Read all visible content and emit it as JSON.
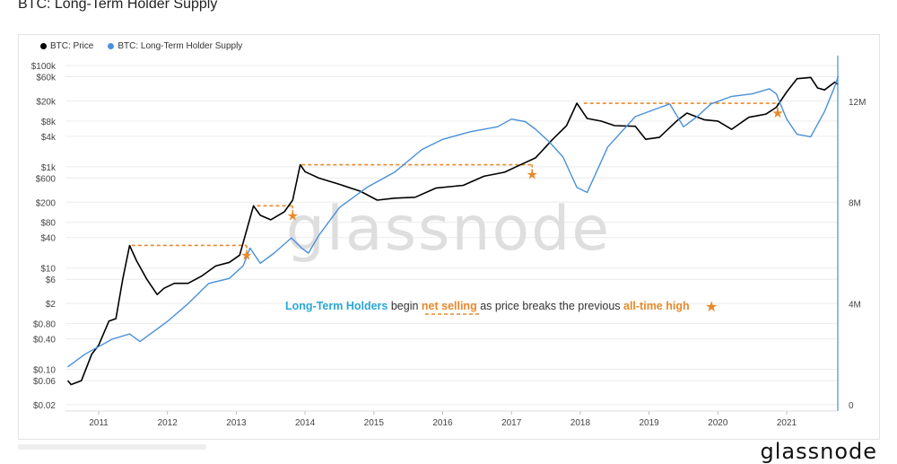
{
  "title": "BTC: Long-Term Holder Supply",
  "legend": [
    {
      "label": "BTC: Price",
      "color": "#000000"
    },
    {
      "label": "BTC: Long-Term Holder Supply",
      "color": "#4a90d9"
    }
  ],
  "watermark": "glassnode",
  "brand": "glassnode",
  "annotation": {
    "part1": "Long-Term Holders",
    "part2": " begin ",
    "part3": "net selling",
    "part4": " as price breaks the previous ",
    "part5": "all-time high",
    "star": "★"
  },
  "colors": {
    "price": "#000000",
    "lth": "#4a90d9",
    "accent": "#e8892b",
    "grid": "#ececec"
  },
  "chart_data": {
    "type": "line",
    "x_ticks": [
      "2011",
      "2012",
      "2013",
      "2014",
      "2015",
      "2016",
      "2017",
      "2018",
      "2019",
      "2020",
      "2021"
    ],
    "y_left_ticks": [
      "$100k",
      "$60k",
      "$20k",
      "$8k",
      "$4k",
      "$1k",
      "$600",
      "$200",
      "$80",
      "$40",
      "$10",
      "$6",
      "$2",
      "$0.80",
      "$0.40",
      "$0.10",
      "$0.06",
      "$0.02"
    ],
    "y_left_scale": "log",
    "y_right_ticks": [
      "12M",
      "8M",
      "4M",
      "0"
    ],
    "ylim_right": [
      0,
      14000000
    ],
    "series": [
      {
        "name": "BTC: Price",
        "axis": "left",
        "points": [
          [
            2010.55,
            0.06
          ],
          [
            2010.6,
            0.05
          ],
          [
            2010.75,
            0.06
          ],
          [
            2010.9,
            0.2
          ],
          [
            2011.0,
            0.3
          ],
          [
            2011.15,
            0.9
          ],
          [
            2011.25,
            1.0
          ],
          [
            2011.35,
            6
          ],
          [
            2011.45,
            28
          ],
          [
            2011.55,
            14
          ],
          [
            2011.7,
            6
          ],
          [
            2011.85,
            3
          ],
          [
            2011.95,
            4
          ],
          [
            2012.1,
            5
          ],
          [
            2012.3,
            5
          ],
          [
            2012.5,
            7
          ],
          [
            2012.7,
            11
          ],
          [
            2012.9,
            13
          ],
          [
            2013.05,
            18
          ],
          [
            2013.25,
            170
          ],
          [
            2013.35,
            110
          ],
          [
            2013.5,
            90
          ],
          [
            2013.7,
            130
          ],
          [
            2013.82,
            220
          ],
          [
            2013.93,
            1100
          ],
          [
            2014.0,
            800
          ],
          [
            2014.2,
            600
          ],
          [
            2014.5,
            450
          ],
          [
            2014.8,
            330
          ],
          [
            2015.05,
            220
          ],
          [
            2015.3,
            240
          ],
          [
            2015.6,
            250
          ],
          [
            2015.9,
            380
          ],
          [
            2016.3,
            430
          ],
          [
            2016.6,
            650
          ],
          [
            2016.9,
            780
          ],
          [
            2017.1,
            1050
          ],
          [
            2017.35,
            1500
          ],
          [
            2017.6,
            3500
          ],
          [
            2017.8,
            6500
          ],
          [
            2017.95,
            18000
          ],
          [
            2018.1,
            9000
          ],
          [
            2018.3,
            8000
          ],
          [
            2018.5,
            6500
          ],
          [
            2018.8,
            6300
          ],
          [
            2018.95,
            3500
          ],
          [
            2019.15,
            3800
          ],
          [
            2019.4,
            8000
          ],
          [
            2019.55,
            11500
          ],
          [
            2019.8,
            8500
          ],
          [
            2020.0,
            8000
          ],
          [
            2020.2,
            5500
          ],
          [
            2020.45,
            9500
          ],
          [
            2020.7,
            11000
          ],
          [
            2020.85,
            15000
          ],
          [
            2021.0,
            30000
          ],
          [
            2021.15,
            55000
          ],
          [
            2021.35,
            58000
          ],
          [
            2021.45,
            36000
          ],
          [
            2021.55,
            33000
          ],
          [
            2021.7,
            47000
          ],
          [
            2021.75,
            42000
          ]
        ]
      },
      {
        "name": "BTC: Long-Term Holder Supply",
        "axis": "right",
        "points": [
          [
            2010.55,
            1500000
          ],
          [
            2010.8,
            2000000
          ],
          [
            2011.0,
            2300000
          ],
          [
            2011.2,
            2600000
          ],
          [
            2011.45,
            2800000
          ],
          [
            2011.6,
            2500000
          ],
          [
            2011.8,
            2900000
          ],
          [
            2012.0,
            3300000
          ],
          [
            2012.3,
            4000000
          ],
          [
            2012.6,
            4800000
          ],
          [
            2012.9,
            5000000
          ],
          [
            2013.1,
            5500000
          ],
          [
            2013.2,
            6200000
          ],
          [
            2013.35,
            5600000
          ],
          [
            2013.55,
            6000000
          ],
          [
            2013.8,
            6600000
          ],
          [
            2013.95,
            6200000
          ],
          [
            2014.05,
            6000000
          ],
          [
            2014.2,
            6700000
          ],
          [
            2014.5,
            7800000
          ],
          [
            2014.9,
            8600000
          ],
          [
            2015.3,
            9200000
          ],
          [
            2015.7,
            10100000
          ],
          [
            2016.0,
            10500000
          ],
          [
            2016.4,
            10800000
          ],
          [
            2016.8,
            11000000
          ],
          [
            2017.0,
            11300000
          ],
          [
            2017.2,
            11200000
          ],
          [
            2017.35,
            10900000
          ],
          [
            2017.55,
            10400000
          ],
          [
            2017.75,
            9800000
          ],
          [
            2017.95,
            8600000
          ],
          [
            2018.1,
            8400000
          ],
          [
            2018.4,
            10200000
          ],
          [
            2018.8,
            11400000
          ],
          [
            2019.1,
            11700000
          ],
          [
            2019.3,
            11900000
          ],
          [
            2019.5,
            11000000
          ],
          [
            2019.7,
            11400000
          ],
          [
            2019.9,
            11900000
          ],
          [
            2020.2,
            12200000
          ],
          [
            2020.5,
            12300000
          ],
          [
            2020.75,
            12500000
          ],
          [
            2020.85,
            12300000
          ],
          [
            2021.0,
            11300000
          ],
          [
            2021.15,
            10700000
          ],
          [
            2021.35,
            10600000
          ],
          [
            2021.55,
            11600000
          ],
          [
            2021.7,
            12600000
          ],
          [
            2021.75,
            13000000
          ]
        ]
      }
    ],
    "ath_markers": [
      {
        "x_start": 2011.48,
        "x_end": 2013.15,
        "level": 28
      },
      {
        "x_start": 2013.3,
        "x_end": 2013.82,
        "level": 170
      },
      {
        "x_start": 2013.95,
        "x_end": 2017.3,
        "level": 1100
      },
      {
        "x_start": 2018.05,
        "x_end": 2020.87,
        "level": 18000
      }
    ]
  }
}
